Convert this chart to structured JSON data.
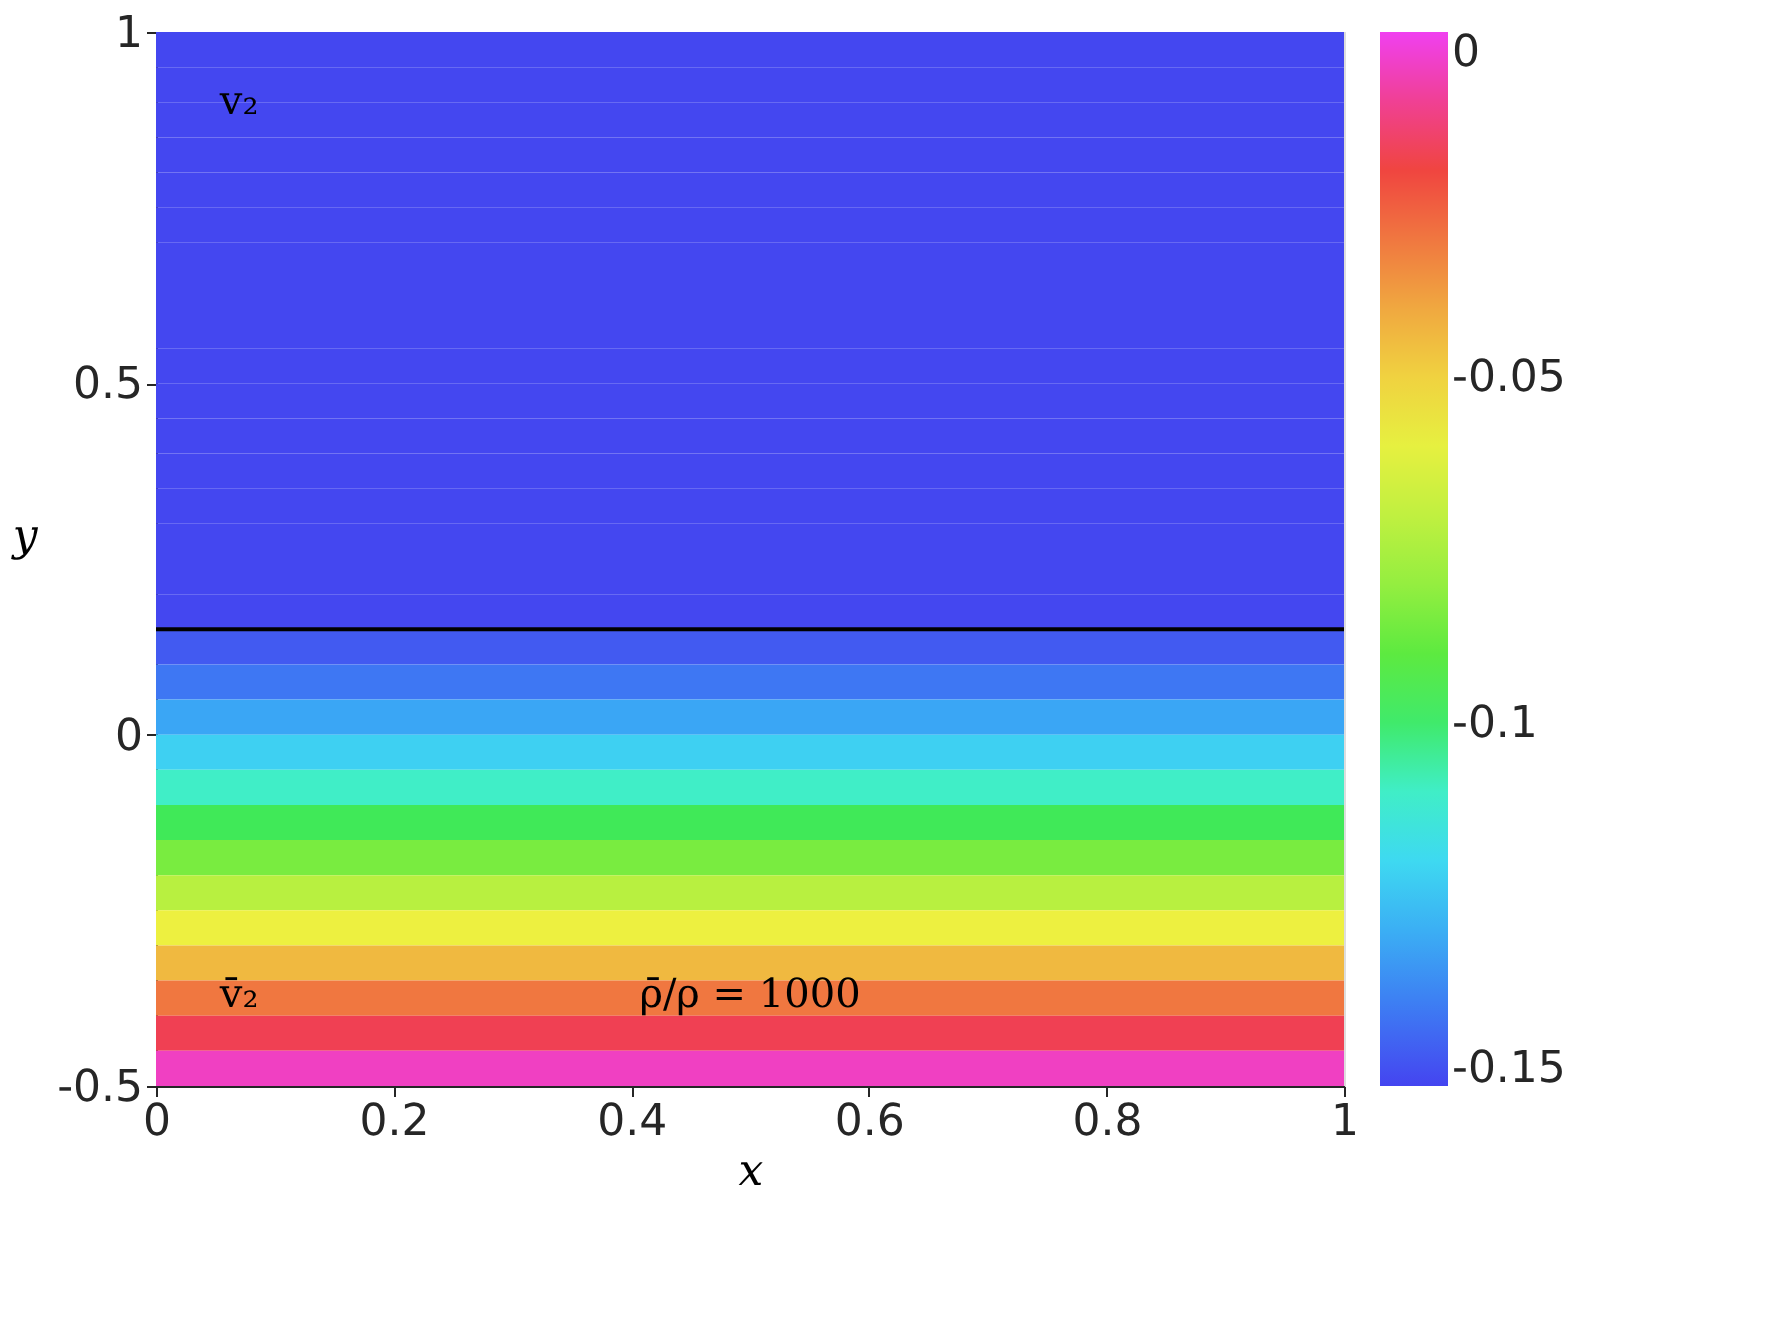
{
  "chart_data": {
    "type": "heatmap",
    "xlabel": "x",
    "ylabel": "y",
    "y": [
      0.975,
      0.925,
      0.875,
      0.825,
      0.775,
      0.725,
      0.675,
      0.625,
      0.575,
      0.525,
      0.475,
      0.425,
      0.375,
      0.325,
      0.275,
      0.225,
      0.175,
      0.125,
      0.075,
      0.025,
      -0.025,
      -0.075,
      -0.125,
      -0.175,
      -0.225,
      -0.275,
      -0.325,
      -0.375,
      -0.425,
      -0.475
    ],
    "cells": [
      [
        -0.152
      ],
      [
        -0.152
      ],
      [
        -0.152
      ],
      [
        -0.152
      ],
      [
        -0.152
      ],
      [
        -0.152
      ],
      [
        -0.152
      ],
      [
        -0.152
      ],
      [
        -0.152
      ],
      [
        -0.152
      ],
      [
        -0.152
      ],
      [
        -0.152
      ],
      [
        -0.152
      ],
      [
        -0.152
      ],
      [
        -0.152
      ],
      [
        -0.152
      ],
      [
        -0.152
      ],
      [
        -0.148
      ],
      [
        -0.142
      ],
      [
        -0.132
      ],
      [
        -0.122
      ],
      [
        -0.11
      ],
      [
        -0.098
      ],
      [
        -0.085
      ],
      [
        -0.072
      ],
      [
        -0.058
      ],
      [
        -0.044
      ],
      [
        -0.03
      ],
      [
        -0.017
      ],
      [
        -0.005
      ]
    ],
    "xlim": [
      0,
      1
    ],
    "ylim": [
      -0.5,
      1
    ],
    "xticks": [
      0,
      0.2,
      0.4,
      0.6,
      0.8,
      1
    ],
    "yticks": [
      -0.5,
      0,
      0.5,
      1
    ],
    "clim": [
      -0.1526,
      0
    ],
    "cticks": [
      -0.15,
      -0.1,
      -0.05,
      0
    ],
    "ref_lines": [
      {
        "axis": "y",
        "value": 0.15,
        "color": "#000000"
      }
    ],
    "annotations": [
      "v₂",
      "v̄₂",
      "ρ̄/ρ = 1000"
    ]
  }
}
